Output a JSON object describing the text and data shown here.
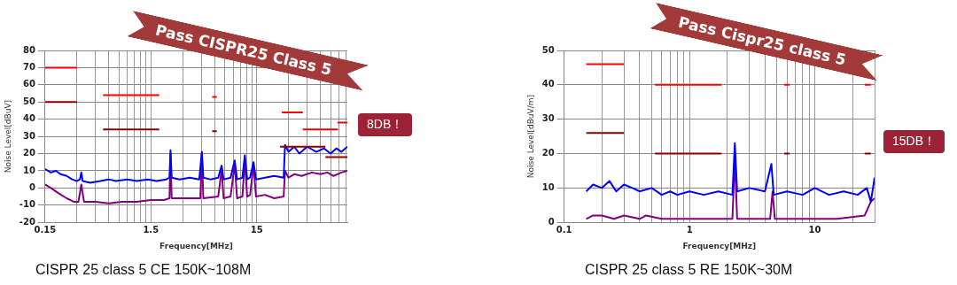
{
  "chart_data": [
    {
      "type": "line",
      "xlabel": "Frequency[MHz]",
      "ylabel": "Noise Level[dBuV]",
      "annotations": [
        "Pass CISPR25 Class 5",
        "8DB！",
        "CISPR 25 class 5 CE 150K~108M"
      ],
      "log": "x",
      "grid": true,
      "legend": false,
      "marker": "none",
      "line_style": "solid",
      "xlim": [
        0.15,
        108
      ],
      "ylim": [
        -20,
        80
      ],
      "xticks": [
        0.15,
        {
          "value": 0.3,
          "label": null
        },
        {
          "value": 0.45,
          "label": null
        },
        {
          "value": 0.6,
          "label": null
        },
        {
          "value": 0.75,
          "label": null
        },
        {
          "value": 0.9,
          "label": null
        },
        {
          "value": 1.05,
          "label": null
        },
        {
          "value": 1.2,
          "label": null
        },
        {
          "value": 1.35,
          "label": null
        },
        1.5,
        {
          "value": 3,
          "label": null
        },
        {
          "value": 4.5,
          "label": null
        },
        {
          "value": 6,
          "label": null
        },
        {
          "value": 7.5,
          "label": null
        },
        {
          "value": 9,
          "label": null
        },
        {
          "value": 10.5,
          "label": null
        },
        {
          "value": 12,
          "label": null
        },
        {
          "value": 13.5,
          "label": null
        },
        15,
        {
          "value": 30,
          "label": null
        },
        {
          "value": 45,
          "label": null
        },
        {
          "value": 60,
          "label": null
        },
        {
          "value": 75,
          "label": null
        },
        {
          "value": 90,
          "label": null
        },
        {
          "value": 105,
          "label": null
        }
      ],
      "yticks": [
        -20,
        -10,
        0,
        10,
        20,
        30,
        40,
        50,
        60,
        70,
        80
      ],
      "series": [
        {
          "color": "#ff0000",
          "x": [
            0.15,
            0.3
          ],
          "values": [
            70,
            70
          ]
        },
        {
          "color": "#ff0000",
          "x": [
            0.53,
            1.8
          ],
          "values": [
            54,
            54
          ]
        },
        {
          "color": "#ff0000",
          "x": [
            5.7,
            6.3
          ],
          "values": [
            53,
            53
          ]
        },
        {
          "color": "#ff0000",
          "x": [
            26,
            41
          ],
          "values": [
            44,
            44
          ]
        },
        {
          "color": "#ff0000",
          "x": [
            41,
            88
          ],
          "values": [
            34,
            34
          ]
        },
        {
          "color": "#ff0000",
          "x": [
            87,
            108
          ],
          "values": [
            38,
            38
          ]
        },
        {
          "color": "#8b0000",
          "x": [
            0.15,
            0.3
          ],
          "values": [
            50,
            50
          ]
        },
        {
          "color": "#8b0000",
          "x": [
            0.53,
            1.8
          ],
          "values": [
            34,
            34
          ]
        },
        {
          "color": "#8b0000",
          "x": [
            5.7,
            6.3
          ],
          "values": [
            33,
            33
          ]
        },
        {
          "color": "#8b0000",
          "x": [
            25,
            67
          ],
          "values": [
            24,
            24
          ]
        },
        {
          "color": "#8b0000",
          "x": [
            67,
            108
          ],
          "values": [
            18,
            18
          ]
        },
        {
          "color": "#0000ff",
          "x": [
            0.15,
            0.17,
            0.19,
            0.21,
            0.24,
            0.27,
            0.3,
            0.32,
            0.33,
            0.34,
            0.4,
            0.5,
            0.6,
            0.7,
            0.9,
            1.1,
            1.4,
            1.7,
            2.1,
            2.25,
            2.3,
            2.36,
            2.8,
            3.5,
            4.3,
            4.55,
            4.7,
            5.5,
            6.5,
            7,
            7.3,
            8.5,
            9.3,
            9.8,
            11,
            11.6,
            12.2,
            13,
            14,
            14.8,
            18,
            22,
            27,
            27.8,
            30,
            34,
            38,
            45,
            55,
            65,
            75,
            85,
            95,
            108
          ],
          "values": [
            11,
            9,
            10,
            8,
            7,
            5,
            4,
            5,
            9,
            4,
            3,
            4,
            5,
            4,
            5,
            4,
            5,
            4,
            5,
            6,
            22,
            6,
            5,
            6,
            5,
            21,
            6,
            5,
            6,
            13,
            5,
            6,
            16,
            5,
            6,
            19,
            5,
            6,
            15,
            5,
            6,
            7,
            6,
            25,
            21,
            24,
            20,
            24,
            21,
            23,
            20,
            23,
            21,
            24
          ]
        },
        {
          "color": "#800080",
          "x": [
            0.15,
            0.17,
            0.2,
            0.24,
            0.28,
            0.31,
            0.33,
            0.35,
            0.45,
            0.6,
            0.8,
            1.1,
            1.5,
            2,
            2.25,
            2.3,
            2.36,
            3.5,
            4.4,
            4.55,
            4.7,
            6.5,
            7,
            7.3,
            8.5,
            9.3,
            9.8,
            11,
            11.6,
            12.2,
            13,
            14,
            14.8,
            18,
            22,
            27,
            27.8,
            30,
            34,
            40,
            50,
            60,
            70,
            80,
            95,
            108
          ],
          "values": [
            2,
            0,
            -3,
            -6,
            -8,
            -8,
            2,
            -8,
            -8,
            -9,
            -8,
            -8,
            -7,
            -7,
            -6,
            20,
            -6,
            -6,
            -6,
            20,
            -6,
            -5,
            11,
            -6,
            -5,
            14,
            -6,
            -5,
            17,
            -5,
            -4,
            13,
            -5,
            -4,
            -6,
            -5,
            10,
            6,
            8,
            7,
            9,
            8,
            9,
            7,
            9,
            10
          ]
        }
      ]
    },
    {
      "type": "line",
      "xlabel": "Frequency[MHz]",
      "ylabel": "Noise Level[dBuV/m]",
      "annotations": [
        "Pass Cispr25 class 5",
        "15DB！",
        "CISPR 25 class 5 RE 150K~30M"
      ],
      "log": "x",
      "grid": true,
      "legend": false,
      "marker": "none",
      "line_style": "solid",
      "xlim": [
        0.1,
        30
      ],
      "ylim": [
        0,
        50
      ],
      "xticks": [
        0.1,
        {
          "value": 0.2,
          "label": null
        },
        {
          "value": 0.3,
          "label": null
        },
        {
          "value": 0.4,
          "label": null
        },
        {
          "value": 0.5,
          "label": null
        },
        {
          "value": 0.6,
          "label": null
        },
        {
          "value": 0.7,
          "label": null
        },
        {
          "value": 0.8,
          "label": null
        },
        {
          "value": 0.9,
          "label": null
        },
        1,
        {
          "value": 2,
          "label": null
        },
        {
          "value": 3,
          "label": null
        },
        {
          "value": 4,
          "label": null
        },
        {
          "value": 5,
          "label": null
        },
        {
          "value": 6,
          "label": null
        },
        {
          "value": 7,
          "label": null
        },
        {
          "value": 8,
          "label": null
        },
        {
          "value": 9,
          "label": null
        },
        10,
        {
          "value": 20,
          "label": null
        },
        {
          "value": 30,
          "label": null
        }
      ],
      "yticks": [
        0,
        10,
        20,
        30,
        40,
        50
      ],
      "series": [
        {
          "color": "#ff0000",
          "x": [
            0.15,
            0.3
          ],
          "values": [
            46,
            46
          ]
        },
        {
          "color": "#ff0000",
          "x": [
            0.53,
            1.8
          ],
          "values": [
            40,
            40
          ]
        },
        {
          "color": "#ff0000",
          "x": [
            5.7,
            6.3
          ],
          "values": [
            40,
            40
          ]
        },
        {
          "color": "#ff0000",
          "x": [
            25,
            28
          ],
          "values": [
            40,
            40
          ]
        },
        {
          "color": "#8b0000",
          "x": [
            0.15,
            0.3
          ],
          "values": [
            26,
            26
          ]
        },
        {
          "color": "#8b0000",
          "x": [
            0.53,
            1.8
          ],
          "values": [
            20,
            20
          ]
        },
        {
          "color": "#8b0000",
          "x": [
            5.7,
            6.3
          ],
          "values": [
            20,
            20
          ]
        },
        {
          "color": "#8b0000",
          "x": [
            25,
            28
          ],
          "values": [
            20,
            20
          ]
        },
        {
          "color": "#0000ff",
          "x": [
            0.15,
            0.17,
            0.2,
            0.23,
            0.26,
            0.3,
            0.35,
            0.4,
            0.5,
            0.6,
            0.7,
            0.8,
            1,
            1.3,
            1.7,
            2.2,
            2.3,
            2.4,
            3,
            4,
            4.5,
            4.7,
            6,
            8,
            10,
            13,
            17,
            22,
            26,
            28,
            30
          ],
          "values": [
            9,
            11,
            10,
            12,
            9,
            11,
            10,
            9,
            10,
            8,
            9,
            8,
            9,
            8,
            9,
            8,
            23,
            9,
            10,
            9,
            17,
            8,
            9,
            8,
            10,
            8,
            9,
            8,
            10,
            6,
            13
          ]
        },
        {
          "color": "#800080",
          "x": [
            0.15,
            0.17,
            0.2,
            0.25,
            0.3,
            0.4,
            0.45,
            0.6,
            1,
            1.5,
            2.2,
            2.3,
            2.4,
            3,
            4.4,
            4.6,
            4.8,
            8,
            15,
            25,
            28,
            30
          ],
          "values": [
            1,
            2,
            2,
            1,
            2,
            1,
            2,
            1,
            1,
            1,
            1,
            19,
            1,
            1,
            1,
            9,
            1,
            1,
            1,
            2,
            6,
            7
          ]
        }
      ]
    }
  ]
}
